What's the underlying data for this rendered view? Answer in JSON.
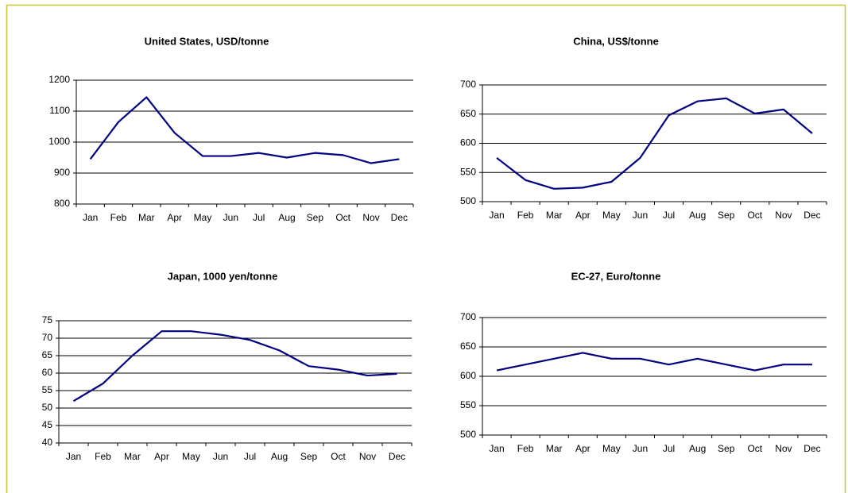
{
  "chart_data": [
    {
      "type": "line",
      "title": "United States, USD/tonne",
      "categories": [
        "Jan",
        "Feb",
        "Mar",
        "Apr",
        "May",
        "Jun",
        "Jul",
        "Aug",
        "Sep",
        "Oct",
        "Nov",
        "Dec"
      ],
      "values": [
        945,
        1065,
        1145,
        1030,
        955,
        955,
        965,
        950,
        965,
        958,
        932,
        945
      ],
      "color": "#000080",
      "ylim": [
        800,
        1200
      ],
      "yticks": [
        800,
        900,
        1000,
        1100,
        1200
      ],
      "grid": true
    },
    {
      "type": "line",
      "title": "China, US$/tonne",
      "categories": [
        "Jan",
        "Feb",
        "Mar",
        "Apr",
        "May",
        "Jun",
        "Jul",
        "Aug",
        "Sep",
        "Oct",
        "Nov",
        "Dec"
      ],
      "values": [
        575,
        537,
        522,
        524,
        534,
        575,
        648,
        672,
        677,
        651,
        658,
        617
      ],
      "color": "#000080",
      "ylim": [
        500,
        700
      ],
      "yticks": [
        500,
        550,
        600,
        650,
        700
      ],
      "grid": true
    },
    {
      "type": "line",
      "title": "Japan, 1000 yen/tonne",
      "categories": [
        "Jan",
        "Feb",
        "Mar",
        "Apr",
        "May",
        "Jun",
        "Jul",
        "Aug",
        "Sep",
        "Oct",
        "Nov",
        "Dec"
      ],
      "values": [
        52,
        57,
        65,
        72,
        72,
        71,
        69.5,
        66.5,
        62,
        61,
        59.3,
        59.8
      ],
      "color": "#000080",
      "ylim": [
        40,
        75
      ],
      "yticks": [
        40,
        45,
        50,
        55,
        60,
        65,
        70,
        75
      ],
      "grid": true
    },
    {
      "type": "line",
      "title": "EC-27, Euro/tonne",
      "categories": [
        "Jan",
        "Feb",
        "Mar",
        "Apr",
        "May",
        "Jun",
        "Jul",
        "Aug",
        "Sep",
        "Oct",
        "Nov",
        "Dec"
      ],
      "values": [
        610,
        620,
        630,
        640,
        630,
        630,
        620,
        630,
        620,
        610,
        620,
        620
      ],
      "color": "#000080",
      "ylim": [
        500,
        700
      ],
      "yticks": [
        500,
        550,
        600,
        650,
        700
      ],
      "grid": true
    }
  ]
}
